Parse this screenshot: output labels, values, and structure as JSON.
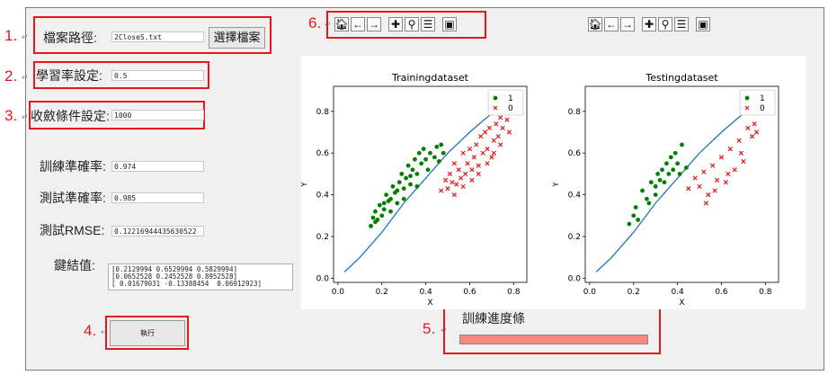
{
  "numbers": [
    "1.",
    "2.",
    "3.",
    "4.",
    "5.",
    "6."
  ],
  "return_mark": "↵",
  "file": {
    "label": "檔案路徑:",
    "value": "2CloseS.txt",
    "button": "選擇檔案"
  },
  "learning_rate": {
    "label": "學習率設定:",
    "value": "0.5"
  },
  "convergence": {
    "label": "收斂條件設定:",
    "value": "1000"
  },
  "train_acc": {
    "label": "訓練準確率:",
    "value": "0.974"
  },
  "test_acc": {
    "label": "測試準確率:",
    "value": "0.985"
  },
  "test_rmse": {
    "label": "測試RMSE:",
    "value": "0.12216944435630522"
  },
  "weights": {
    "label": "鍵結值:",
    "lines": [
      "[0.2129994 0.6529994 0.5829994]",
      "[0.0652528 0.2452528 0.8952528]",
      "[ 0.01679031 -0.13388454  0.06912923]"
    ]
  },
  "run_button": "執行",
  "progress": {
    "label": "訓練進度條",
    "fraction": 1.0
  },
  "toolbar_icons": [
    "home-icon",
    "back-icon",
    "forward-icon",
    "pan-icon",
    "zoom-icon",
    "configure-icon",
    "save-icon"
  ],
  "chart_data": [
    {
      "type": "scatter",
      "title": "Trainingdataset",
      "xlabel": "X",
      "ylabel": "Y",
      "xlim": [
        -0.02,
        0.86
      ],
      "ylim": [
        -0.02,
        0.92
      ],
      "xticks": [
        "0.0",
        "0.2",
        "0.4",
        "0.6",
        "0.8"
      ],
      "yticks": [
        "0.0",
        "0.2",
        "0.4",
        "0.6",
        "0.8"
      ],
      "legend": "top-right",
      "line": {
        "x": [
          0.03,
          0.1,
          0.2,
          0.3,
          0.4,
          0.5,
          0.6,
          0.7,
          0.8
        ],
        "y": [
          0.03,
          0.1,
          0.22,
          0.36,
          0.48,
          0.6,
          0.7,
          0.79,
          0.86
        ]
      },
      "series": [
        {
          "name": "1",
          "marker": "circle",
          "color": "#008000",
          "points": [
            [
              0.15,
              0.25
            ],
            [
              0.16,
              0.29
            ],
            [
              0.17,
              0.32
            ],
            [
              0.18,
              0.28
            ],
            [
              0.19,
              0.35
            ],
            [
              0.2,
              0.3
            ],
            [
              0.21,
              0.33
            ],
            [
              0.22,
              0.4
            ],
            [
              0.23,
              0.37
            ],
            [
              0.24,
              0.32
            ],
            [
              0.25,
              0.44
            ],
            [
              0.26,
              0.41
            ],
            [
              0.27,
              0.36
            ],
            [
              0.28,
              0.46
            ],
            [
              0.29,
              0.5
            ],
            [
              0.3,
              0.43
            ],
            [
              0.31,
              0.48
            ],
            [
              0.32,
              0.54
            ],
            [
              0.33,
              0.45
            ],
            [
              0.34,
              0.52
            ],
            [
              0.35,
              0.57
            ],
            [
              0.36,
              0.5
            ],
            [
              0.37,
              0.6
            ],
            [
              0.38,
              0.55
            ],
            [
              0.39,
              0.62
            ],
            [
              0.4,
              0.57
            ],
            [
              0.41,
              0.52
            ],
            [
              0.42,
              0.6
            ],
            [
              0.44,
              0.58
            ],
            [
              0.45,
              0.63
            ],
            [
              0.46,
              0.56
            ],
            [
              0.47,
              0.64
            ],
            [
              0.48,
              0.6
            ],
            [
              0.17,
              0.27
            ],
            [
              0.21,
              0.36
            ],
            [
              0.24,
              0.38
            ],
            [
              0.27,
              0.42
            ],
            [
              0.3,
              0.38
            ],
            [
              0.33,
              0.49
            ],
            [
              0.36,
              0.44
            ]
          ]
        },
        {
          "name": "0",
          "marker": "x",
          "color": "#e8151b",
          "points": [
            [
              0.47,
              0.42
            ],
            [
              0.49,
              0.47
            ],
            [
              0.5,
              0.43
            ],
            [
              0.51,
              0.5
            ],
            [
              0.52,
              0.46
            ],
            [
              0.53,
              0.55
            ],
            [
              0.54,
              0.45
            ],
            [
              0.55,
              0.52
            ],
            [
              0.56,
              0.48
            ],
            [
              0.57,
              0.6
            ],
            [
              0.58,
              0.5
            ],
            [
              0.59,
              0.55
            ],
            [
              0.6,
              0.62
            ],
            [
              0.61,
              0.52
            ],
            [
              0.62,
              0.58
            ],
            [
              0.63,
              0.64
            ],
            [
              0.64,
              0.54
            ],
            [
              0.65,
              0.68
            ],
            [
              0.66,
              0.6
            ],
            [
              0.67,
              0.7
            ],
            [
              0.68,
              0.62
            ],
            [
              0.69,
              0.72
            ],
            [
              0.7,
              0.58
            ],
            [
              0.71,
              0.66
            ],
            [
              0.72,
              0.74
            ],
            [
              0.73,
              0.68
            ],
            [
              0.74,
              0.77
            ],
            [
              0.75,
              0.72
            ],
            [
              0.76,
              0.8
            ],
            [
              0.77,
              0.76
            ],
            [
              0.78,
              0.7
            ],
            [
              0.53,
              0.4
            ],
            [
              0.57,
              0.44
            ],
            [
              0.61,
              0.47
            ],
            [
              0.64,
              0.5
            ],
            [
              0.68,
              0.55
            ],
            [
              0.71,
              0.6
            ],
            [
              0.74,
              0.64
            ]
          ]
        }
      ]
    },
    {
      "type": "scatter",
      "title": "Testingdataset",
      "xlabel": "X",
      "ylabel": "Y",
      "xlim": [
        -0.02,
        0.86
      ],
      "ylim": [
        -0.02,
        0.92
      ],
      "xticks": [
        "0.0",
        "0.2",
        "0.4",
        "0.6",
        "0.8"
      ],
      "yticks": [
        "0.0",
        "0.2",
        "0.4",
        "0.6",
        "0.8"
      ],
      "legend": "top-right",
      "line": {
        "x": [
          0.03,
          0.1,
          0.2,
          0.3,
          0.4,
          0.5,
          0.6,
          0.7,
          0.8
        ],
        "y": [
          0.03,
          0.1,
          0.22,
          0.36,
          0.48,
          0.6,
          0.7,
          0.79,
          0.86
        ]
      },
      "series": [
        {
          "name": "1",
          "marker": "circle",
          "color": "#008000",
          "points": [
            [
              0.18,
              0.26
            ],
            [
              0.2,
              0.3
            ],
            [
              0.21,
              0.34
            ],
            [
              0.22,
              0.28
            ],
            [
              0.24,
              0.42
            ],
            [
              0.26,
              0.38
            ],
            [
              0.28,
              0.46
            ],
            [
              0.3,
              0.44
            ],
            [
              0.31,
              0.5
            ],
            [
              0.32,
              0.47
            ],
            [
              0.33,
              0.52
            ],
            [
              0.34,
              0.46
            ],
            [
              0.35,
              0.55
            ],
            [
              0.36,
              0.5
            ],
            [
              0.37,
              0.58
            ],
            [
              0.38,
              0.52
            ],
            [
              0.39,
              0.6
            ],
            [
              0.4,
              0.55
            ],
            [
              0.41,
              0.5
            ],
            [
              0.42,
              0.64
            ],
            [
              0.44,
              0.53
            ],
            [
              0.3,
              0.4
            ],
            [
              0.27,
              0.36
            ]
          ]
        },
        {
          "name": "0",
          "marker": "x",
          "color": "#e8151b",
          "points": [
            [
              0.45,
              0.43
            ],
            [
              0.48,
              0.48
            ],
            [
              0.5,
              0.44
            ],
            [
              0.52,
              0.51
            ],
            [
              0.54,
              0.4
            ],
            [
              0.56,
              0.54
            ],
            [
              0.58,
              0.47
            ],
            [
              0.6,
              0.58
            ],
            [
              0.62,
              0.46
            ],
            [
              0.64,
              0.62
            ],
            [
              0.66,
              0.52
            ],
            [
              0.68,
              0.66
            ],
            [
              0.7,
              0.56
            ],
            [
              0.72,
              0.72
            ],
            [
              0.74,
              0.68
            ],
            [
              0.75,
              0.74
            ],
            [
              0.76,
              0.7
            ],
            [
              0.53,
              0.36
            ],
            [
              0.57,
              0.42
            ],
            [
              0.63,
              0.5
            ],
            [
              0.69,
              0.6
            ]
          ]
        }
      ]
    }
  ]
}
